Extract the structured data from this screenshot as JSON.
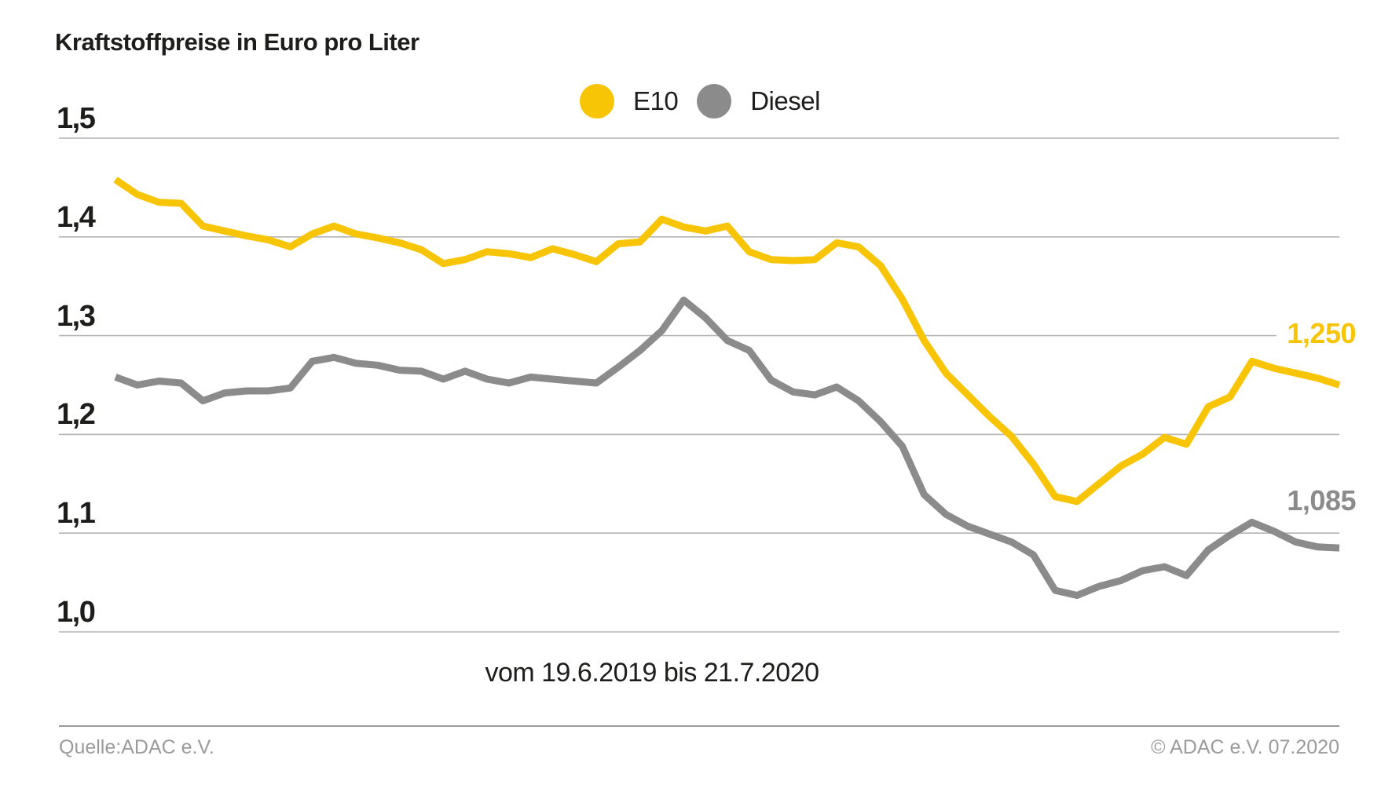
{
  "footer": {
    "source": "Quelle:ADAC e.V.",
    "copyright": "© ADAC e.V. 07.2020"
  },
  "chart_data": {
    "type": "line",
    "title": "Kraftstoffpreise in Euro pro Liter",
    "x_range_label": "vom 19.6.2019 bis 21.7.2020",
    "x_start": "19.6.2019",
    "x_end": "21.7.2020",
    "ylabel": "Euro pro Liter",
    "ylim": [
      1.0,
      1.5
    ],
    "y_tick_labels": [
      "1,5",
      "1,4",
      "1,3",
      "1,2",
      "1,1",
      "1,0"
    ],
    "grid": "horizontal",
    "legend_position": "top-center",
    "background": "#ffffff",
    "series": [
      {
        "name": "E10",
        "color": "#F8C506",
        "end_label": "1,250",
        "last_value": 1.25,
        "values": [
          1.458,
          1.443,
          1.435,
          1.434,
          1.411,
          1.406,
          1.401,
          1.397,
          1.39,
          1.403,
          1.411,
          1.403,
          1.399,
          1.394,
          1.387,
          1.373,
          1.377,
          1.385,
          1.383,
          1.379,
          1.388,
          1.382,
          1.375,
          1.393,
          1.395,
          1.418,
          1.41,
          1.406,
          1.411,
          1.385,
          1.377,
          1.376,
          1.377,
          1.394,
          1.39,
          1.371,
          1.337,
          1.295,
          1.262,
          1.24,
          1.218,
          1.198,
          1.17,
          1.137,
          1.132,
          1.15,
          1.168,
          1.18,
          1.197,
          1.19,
          1.228,
          1.238,
          1.274,
          1.267,
          1.262,
          1.257,
          1.25
        ]
      },
      {
        "name": "Diesel",
        "color": "#8B8B8B",
        "end_label": "1,085",
        "last_value": 1.085,
        "values": [
          1.258,
          1.25,
          1.254,
          1.252,
          1.234,
          1.242,
          1.244,
          1.244,
          1.247,
          1.274,
          1.278,
          1.272,
          1.27,
          1.265,
          1.264,
          1.256,
          1.264,
          1.256,
          1.252,
          1.258,
          1.256,
          1.254,
          1.252,
          1.268,
          1.285,
          1.305,
          1.336,
          1.318,
          1.295,
          1.285,
          1.255,
          1.243,
          1.24,
          1.248,
          1.234,
          1.213,
          1.188,
          1.139,
          1.119,
          1.107,
          1.099,
          1.091,
          1.078,
          1.042,
          1.037,
          1.046,
          1.052,
          1.062,
          1.066,
          1.057,
          1.083,
          1.098,
          1.111,
          1.102,
          1.091,
          1.086,
          1.085
        ]
      }
    ]
  }
}
